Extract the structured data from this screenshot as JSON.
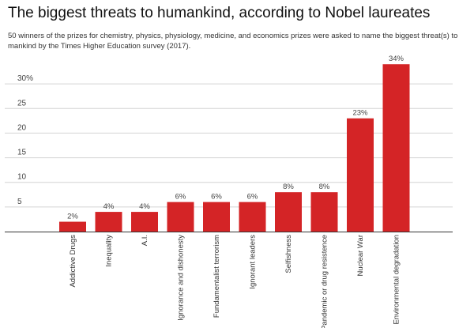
{
  "chart_data": {
    "type": "bar",
    "title": "The biggest threats to humankind, according to Nobel laureates",
    "subtitle": "50 winners of the prizes for chemistry, physics, physiology, medicine, and economics prizes were asked to name the biggest threat(s) to mankind by the Times Higher Education survey (2017).",
    "categories": [
      "Addictive Drugs",
      "Inequality",
      "A.I.",
      "Ignorance and dishonesty",
      "Fundamentalist terrorism",
      "Ignorant leaders",
      "Selfishness",
      "Pandemic or drug resistence",
      "Nuclear War",
      "Environmental degradation"
    ],
    "values": [
      2,
      4,
      4,
      6,
      6,
      6,
      8,
      8,
      23,
      34
    ],
    "data_labels": [
      "2%",
      "4%",
      "4%",
      "6%",
      "6%",
      "6%",
      "8%",
      "8%",
      "23%",
      "34%"
    ],
    "yticks": [
      5,
      10,
      15,
      20,
      25,
      30
    ],
    "ytick_labels": [
      "5",
      "10",
      "15",
      "20",
      "25",
      "30%"
    ],
    "ylim": [
      0,
      35
    ],
    "xlabel": "",
    "ylabel": "",
    "grid": true,
    "bar_color": "#d42426"
  }
}
